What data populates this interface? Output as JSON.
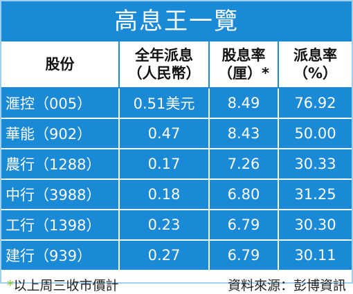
{
  "title": "高息王一覽",
  "table": {
    "header": [
      [
        "股份"
      ],
      [
        "全年派息",
        "（人民幣）"
      ],
      [
        "股息率",
        "（厘）*"
      ],
      [
        "派息率",
        "（%）"
      ]
    ],
    "rows": [
      [
        "滙控（005）",
        "0.51美元",
        "8.49",
        "76.92"
      ],
      [
        "華能（902）",
        "0.47",
        "8.43",
        "50.00"
      ],
      [
        "農行（1288）",
        "0.17",
        "7.26",
        "30.33"
      ],
      [
        "中行（3988）",
        "0.18",
        "6.80",
        "31.25"
      ],
      [
        "工行（1398）",
        "0.23",
        "6.79",
        "30.30"
      ],
      [
        "建行（939）",
        "0.27",
        "6.79",
        "30.11"
      ]
    ]
  },
  "footer": {
    "mark": "*",
    "note": "以上周三收市價計",
    "source": "資料來源：彭博資訊"
  }
}
